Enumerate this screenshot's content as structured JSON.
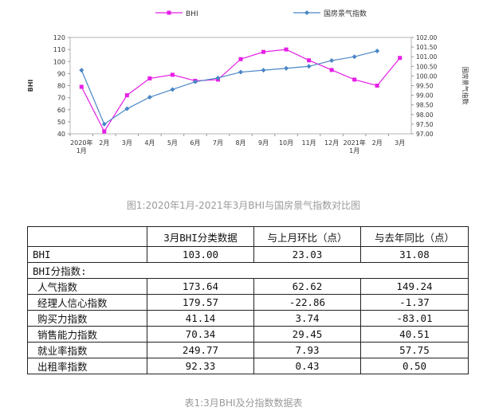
{
  "chart_data": {
    "type": "line",
    "categories": [
      "2020年\n1月",
      "2月",
      "3月",
      "4月",
      "5月",
      "6月",
      "7月",
      "8月",
      "9月",
      "10月",
      "11月",
      "12月",
      "2021年\n1月",
      "2月",
      "3月"
    ],
    "series": [
      {
        "name": "BHI",
        "axis": "left",
        "color": "#e61ee6",
        "marker": "square",
        "values": [
          79,
          42,
          72,
          86,
          89,
          84,
          85,
          102,
          108,
          110,
          101,
          93,
          85,
          80,
          103
        ]
      },
      {
        "name": "国房景气指数",
        "axis": "right",
        "color": "#4a86c5",
        "marker": "diamond",
        "values": [
          100.3,
          97.5,
          98.3,
          98.9,
          99.3,
          99.7,
          99.9,
          100.2,
          100.3,
          100.4,
          100.5,
          100.8,
          101.0,
          101.3,
          null
        ]
      }
    ],
    "ylabel": "BHI",
    "y2label": "国房景气指数",
    "ylim": [
      40,
      120
    ],
    "yticks": [
      "40",
      "50",
      "60",
      "70",
      "80",
      "90",
      "100",
      "110",
      "120"
    ],
    "y2lim": [
      97.0,
      102.0
    ],
    "y2ticks": [
      "97.00",
      "97.50",
      "98.00",
      "98.50",
      "99.00",
      "99.50",
      "100.00",
      "100.50",
      "101.00",
      "101.50",
      "102.00"
    ],
    "grid": false,
    "legend_position": "top"
  },
  "captions": {
    "figure": "图1:2020年1月-2021年3月BHI与国房景气指数对比图",
    "table": "表1:3月BHI及分指数数据表"
  },
  "table": {
    "headers": [
      "",
      "3月BHI分类数据",
      "与上月环比（点）",
      "与去年同比（点）"
    ],
    "rows": [
      {
        "label": "BHI",
        "values": [
          "103.00",
          "23.03",
          "31.08"
        ]
      },
      {
        "label": "BHI分指数:",
        "values": null
      },
      {
        "label": "人气指数",
        "values": [
          "173.64",
          "62.62",
          "149.24"
        ]
      },
      {
        "label": "经理人信心指数",
        "values": [
          "179.57",
          "-22.86",
          "-1.37"
        ]
      },
      {
        "label": "购买力指数",
        "values": [
          "41.14",
          "3.74",
          "-83.01"
        ]
      },
      {
        "label": "销售能力指数",
        "values": [
          "70.34",
          "29.45",
          "40.51"
        ]
      },
      {
        "label": "就业率指数",
        "values": [
          "249.77",
          "7.93",
          "57.75"
        ]
      },
      {
        "label": "出租率指数",
        "values": [
          "92.33",
          "0.43",
          "0.50"
        ]
      }
    ]
  }
}
